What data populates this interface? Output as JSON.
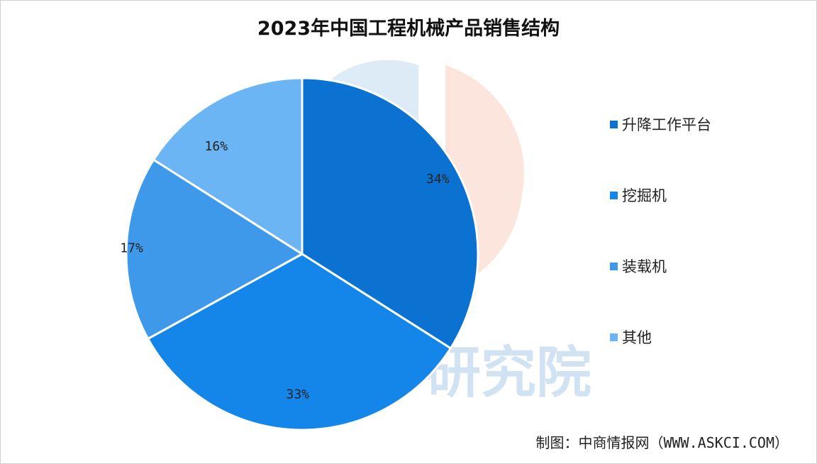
{
  "chart_data": {
    "type": "pie",
    "title": "2023年中国工程机械产品销售结构",
    "categories": [
      "升降工作平台",
      "挖掘机",
      "装载机",
      "其他"
    ],
    "values": [
      34,
      33,
      17,
      16
    ],
    "labels": [
      "34%",
      "33%",
      "17%",
      "16%"
    ],
    "colors": [
      "#0b72d1",
      "#1486ea",
      "#3f99eb",
      "#6cb5f5"
    ],
    "legend_position": "right"
  },
  "watermark": {
    "text": "研究院"
  },
  "footer": {
    "source": "制图：中商情报网（WWW.ASKCI.COM）"
  }
}
